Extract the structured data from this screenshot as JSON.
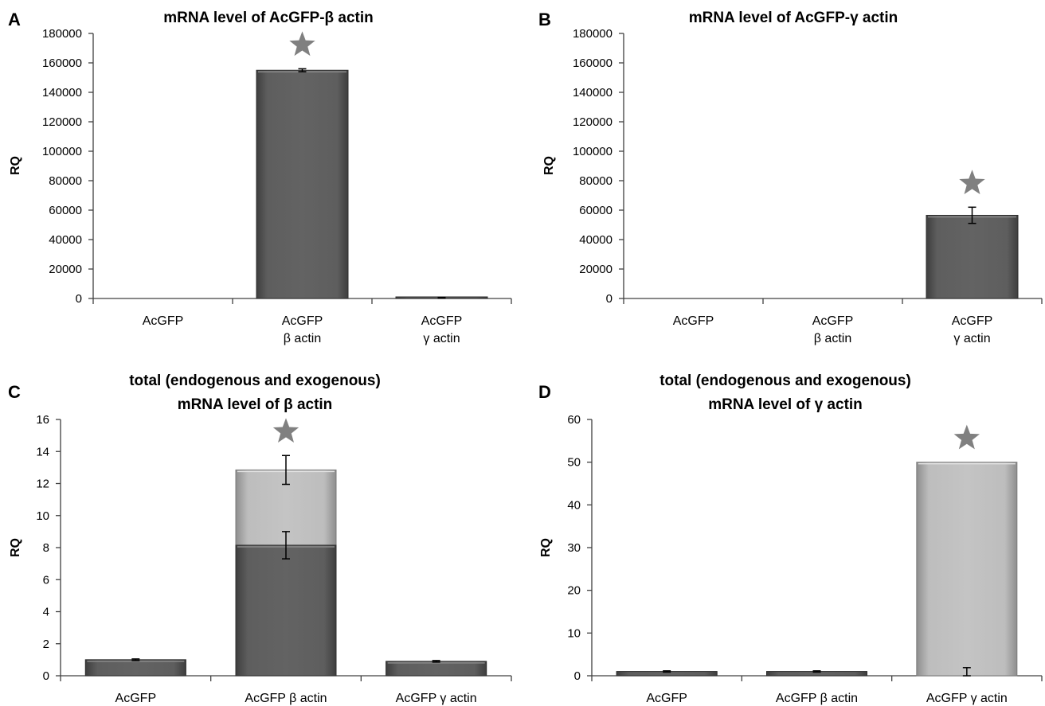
{
  "colors": {
    "dark_bar": "#555555",
    "light_bar": "#b5b5b5",
    "star": "#808080"
  },
  "chart_data": [
    {
      "panel": "A",
      "type": "bar",
      "title": [
        "mRNA level of AcGFP-β actin"
      ],
      "ylabel": "RQ",
      "ylim": [
        0,
        180000
      ],
      "yticks": [
        0,
        20000,
        40000,
        60000,
        80000,
        100000,
        120000,
        140000,
        160000,
        180000
      ],
      "categories": [
        [
          "AcGFP"
        ],
        [
          "AcGFP",
          "β actin"
        ],
        [
          "AcGFP",
          "γ actin"
        ]
      ],
      "series": [
        {
          "style": "dark",
          "values": [
            0,
            155000,
            500
          ],
          "errors": [
            0,
            1000,
            300
          ]
        }
      ],
      "significant": [
        false,
        true,
        false
      ]
    },
    {
      "panel": "B",
      "type": "bar",
      "title": [
        "mRNA level of AcGFP-γ actin"
      ],
      "ylabel": "RQ",
      "ylim": [
        0,
        180000
      ],
      "yticks": [
        0,
        20000,
        40000,
        60000,
        80000,
        100000,
        120000,
        140000,
        160000,
        180000
      ],
      "categories": [
        [
          "AcGFP"
        ],
        [
          "AcGFP",
          "β actin"
        ],
        [
          "AcGFP",
          "γ actin"
        ]
      ],
      "series": [
        {
          "style": "dark",
          "values": [
            0,
            0,
            56500
          ],
          "errors": [
            0,
            0,
            5500
          ]
        }
      ],
      "significant": [
        false,
        false,
        true
      ]
    },
    {
      "panel": "C",
      "type": "bar",
      "title": [
        "total (endogenous and exogenous)",
        "mRNA level of  β actin"
      ],
      "ylabel": "RQ",
      "ylim": [
        0,
        16
      ],
      "yticks": [
        0,
        2,
        4,
        6,
        8,
        10,
        12,
        14,
        16
      ],
      "categories": [
        [
          "AcGFP"
        ],
        [
          "AcGFP β actin"
        ],
        [
          "AcGFP γ actin"
        ]
      ],
      "series": [
        {
          "style": "light",
          "values": [
            1.0,
            12.85,
            0.9
          ],
          "errors": [
            0,
            0.9,
            0
          ]
        },
        {
          "style": "dark",
          "values": [
            1.0,
            8.15,
            0.9
          ],
          "errors": [
            0.05,
            0.85,
            0.05
          ]
        }
      ],
      "significant": [
        false,
        true,
        false
      ]
    },
    {
      "panel": "D",
      "type": "bar",
      "title": [
        "total (endogenous and exogenous)",
        "mRNA level of  γ actin"
      ],
      "ylabel": "RQ",
      "ylim": [
        0,
        60
      ],
      "yticks": [
        0,
        10,
        20,
        30,
        40,
        50,
        60
      ],
      "categories": [
        [
          "AcGFP"
        ],
        [
          "AcGFP β actin"
        ],
        [
          "AcGFP γ actin"
        ]
      ],
      "series": [
        {
          "style": "light",
          "values": [
            1.0,
            1.0,
            50.0
          ],
          "errors": [
            0,
            0,
            0
          ]
        },
        {
          "style": "dark",
          "values": [
            1.0,
            1.0,
            0
          ],
          "errors": [
            0.15,
            0.15,
            1.9
          ]
        }
      ],
      "significant": [
        false,
        false,
        true
      ]
    }
  ]
}
